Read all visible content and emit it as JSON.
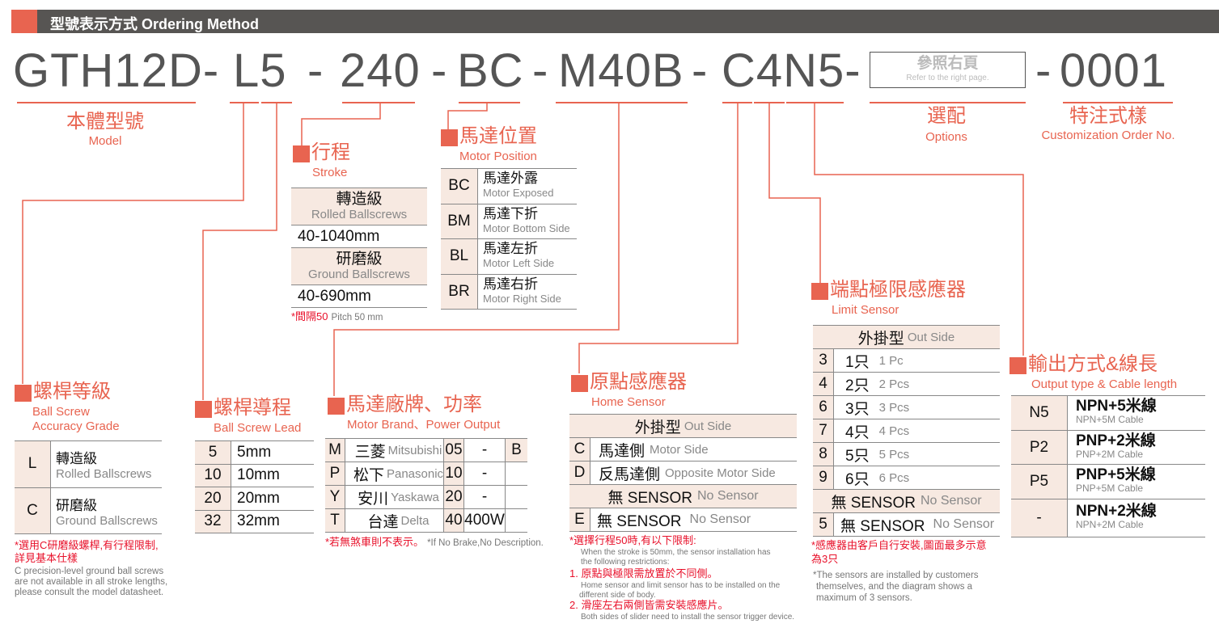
{
  "header": {
    "title": "型號表示方式 Ordering Method"
  },
  "code": {
    "base": "GTH12D-",
    "lead_grade": "L5",
    "sep1": "-",
    "stroke": "240",
    "sep2": "-",
    "motor_position": "BC",
    "sep3": "-",
    "motor": "M40B",
    "sep4": "-",
    "sensor": "C4N5-",
    "options_box": {
      "zh": "參照右頁",
      "en": "Refer to the right page."
    },
    "sep5": "-",
    "custom": "0001"
  },
  "labels": {
    "model": {
      "zh": "本體型號",
      "en": "Model"
    },
    "options": {
      "zh": "選配",
      "en": "Options"
    },
    "custom": {
      "zh": "特注式樣",
      "en": "Customization Order No."
    }
  },
  "sections": {
    "stroke": {
      "zh": "行程",
      "en": "Stroke"
    },
    "motor_position": {
      "zh": "馬達位置",
      "en": "Motor Position"
    },
    "limit_sensor": {
      "zh": "端點極限感應器",
      "en": "Limit Sensor"
    },
    "output": {
      "zh": "輸出方式&線長",
      "en": "Output type & Cable length"
    },
    "accuracy": {
      "zh": "螺桿等級",
      "en": "Ball Screw",
      "en2": "Accuracy Grade"
    },
    "lead": {
      "zh": "螺桿導程",
      "en": "Ball Screw Lead"
    },
    "motor_brand": {
      "zh": "馬達廠牌、功率",
      "en": "Motor Brand、Power Output"
    },
    "home_sensor": {
      "zh": "原點感應器",
      "en": "Home Sensor"
    }
  },
  "tables": {
    "stroke": {
      "rows": [
        {
          "zh": "轉造級",
          "en": "Rolled Ballscrews"
        },
        {
          "value": "40-1040mm"
        },
        {
          "zh": "研磨級",
          "en": "Ground Ballscrews"
        },
        {
          "value": "40-690mm"
        }
      ],
      "note_zh": "*間隔50",
      "note_en": "Pitch 50 mm"
    },
    "motor_position": {
      "rows": [
        {
          "code": "BC",
          "zh": "馬達外露",
          "en": "Motor Exposed"
        },
        {
          "code": "BM",
          "zh": "馬達下折",
          "en": "Motor Bottom Side"
        },
        {
          "code": "BL",
          "zh": "馬達左折",
          "en": "Motor Left Side"
        },
        {
          "code": "BR",
          "zh": "馬達右折",
          "en": "Motor Right Side"
        }
      ]
    },
    "accuracy": {
      "rows": [
        {
          "code": "L",
          "zh": "轉造級",
          "en": "Rolled Ballscrews"
        },
        {
          "code": "C",
          "zh": "研磨級",
          "en": "Ground Ballscrews"
        }
      ],
      "note_zh1": "*選用C研磨級螺桿,有行程限制,",
      "note_zh2": "詳見基本仕樣",
      "note_en1": "C precision-level ground ball screws",
      "note_en2": "are not available in all stroke lengths,",
      "note_en3": "please consult the model datasheet."
    },
    "lead": {
      "rows": [
        {
          "code": "5",
          "value": "5mm"
        },
        {
          "code": "10",
          "value": "10mm"
        },
        {
          "code": "20",
          "value": "20mm"
        },
        {
          "code": "32",
          "value": "32mm"
        }
      ]
    },
    "motor_brand": {
      "rows": [
        {
          "code": "M",
          "zh": "三菱",
          "en": "Mitsubishi",
          "pcode": "05",
          "power": "-",
          "brake": "B"
        },
        {
          "code": "P",
          "zh": "松下",
          "en": "Panasonic",
          "pcode": "10",
          "power": "-",
          "brake": ""
        },
        {
          "code": "Y",
          "zh": "安川",
          "en": "Yaskawa",
          "pcode": "20",
          "power": "-",
          "brake": ""
        },
        {
          "code": "T",
          "zh": "台達",
          "en": "Delta",
          "pcode": "40",
          "power": "400W",
          "brake": ""
        }
      ],
      "note_zh": "*若無煞車則不表示。",
      "note_en": "*If No Brake,No Description."
    },
    "home_sensor": {
      "header_zh": "外掛型",
      "header_en": "Out Side",
      "rows": [
        {
          "code": "C",
          "zh": "馬達側",
          "en": "Motor Side"
        },
        {
          "code": "D",
          "zh": "反馬達側",
          "en": "Opposite Motor Side"
        }
      ],
      "none_header_zh": "無 SENSOR",
      "none_header_en": "No Sensor",
      "none_row": {
        "code": "E",
        "zh": "無  SENSOR",
        "en": "No Sensor"
      },
      "note_zh": "*選擇行程50時,有以下限制:",
      "note_en1": "When the stroke is 50mm, the sensor installation has",
      "note_en2": "the following restrictions:",
      "r1_zh": "1. 原點與極限需放置於不同側。",
      "r1_en1": "Home sensor and limit sensor has to be installed on the",
      "r1_en2": "different side of body.",
      "r2_zh": "2. 滑座左右兩側皆需安裝感應片。",
      "r2_en": "Both sides of slider need to install the sensor trigger device."
    },
    "limit_sensor": {
      "header_zh": "外掛型",
      "header_en": "Out Side",
      "rows": [
        {
          "code": "3",
          "zh": "1只",
          "en": "1 Pc"
        },
        {
          "code": "4",
          "zh": "2只",
          "en": "2 Pcs"
        },
        {
          "code": "6",
          "zh": "3只",
          "en": "3 Pcs"
        },
        {
          "code": "7",
          "zh": "4只",
          "en": "4 Pcs"
        },
        {
          "code": "8",
          "zh": "5只",
          "en": "5 Pcs"
        },
        {
          "code": "9",
          "zh": "6只",
          "en": "6 Pcs"
        }
      ],
      "none_header_zh": "無 SENSOR",
      "none_header_en": "No Sensor",
      "none_row": {
        "code": "5",
        "zh": "無 SENSOR",
        "en": "No Sensor"
      },
      "note_zh1": "*感應器由客戶自行安裝,圖面最多示意",
      "note_zh2": "為3只",
      "note_en1": "*The sensors are installed by customers",
      "note_en2": "themselves, and the diagram shows a",
      "note_en3": "maximum of 3 sensors."
    },
    "output": {
      "rows": [
        {
          "code": "N5",
          "zh": "NPN+5米線",
          "en": "NPN+5M Cable"
        },
        {
          "code": "P2",
          "zh": "PNP+2米線",
          "en": "PNP+2M Cable"
        },
        {
          "code": "P5",
          "zh": "PNP+5米線",
          "en": "PNP+5M Cable"
        },
        {
          "code": "-",
          "zh": "NPN+2米線",
          "en": "NPN+2M Cable"
        }
      ]
    }
  },
  "colors": {
    "accent": "#e86450",
    "bar": "#575553",
    "shade": "#f7e9e1",
    "note_red": "#e8102a"
  }
}
